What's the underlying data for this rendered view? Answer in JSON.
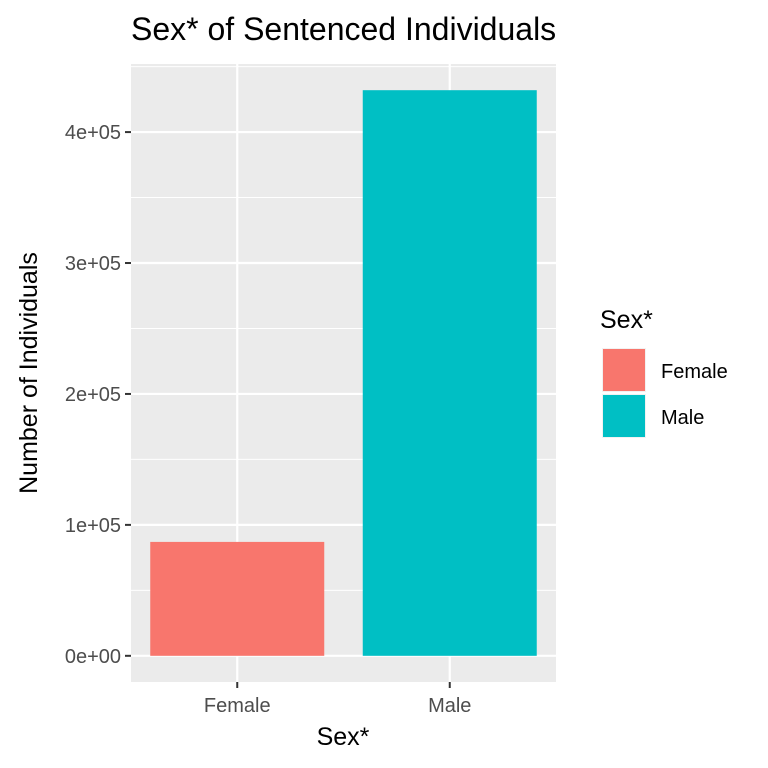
{
  "chart_data": {
    "type": "bar",
    "title": "Sex* of Sentenced Individuals",
    "xlabel": "Sex*",
    "ylabel": "Number of Individuals",
    "categories": [
      "Female",
      "Male"
    ],
    "values": [
      87000,
      432000
    ],
    "colors": [
      "#F8766D",
      "#00BFC4"
    ],
    "ylim": [
      -20000,
      452000
    ],
    "y_ticks": [
      {
        "value": 0,
        "label": "0e+00"
      },
      {
        "value": 100000,
        "label": "1e+05"
      },
      {
        "value": 200000,
        "label": "2e+05"
      },
      {
        "value": 300000,
        "label": "3e+05"
      },
      {
        "value": 400000,
        "label": "4e+05"
      }
    ],
    "grid": true,
    "panel_background": "#EBEBEB",
    "legend": {
      "title": "Sex*",
      "position": "right",
      "entries": [
        {
          "label": "Female",
          "color": "#F8766D"
        },
        {
          "label": "Male",
          "color": "#00BFC4"
        }
      ]
    }
  }
}
